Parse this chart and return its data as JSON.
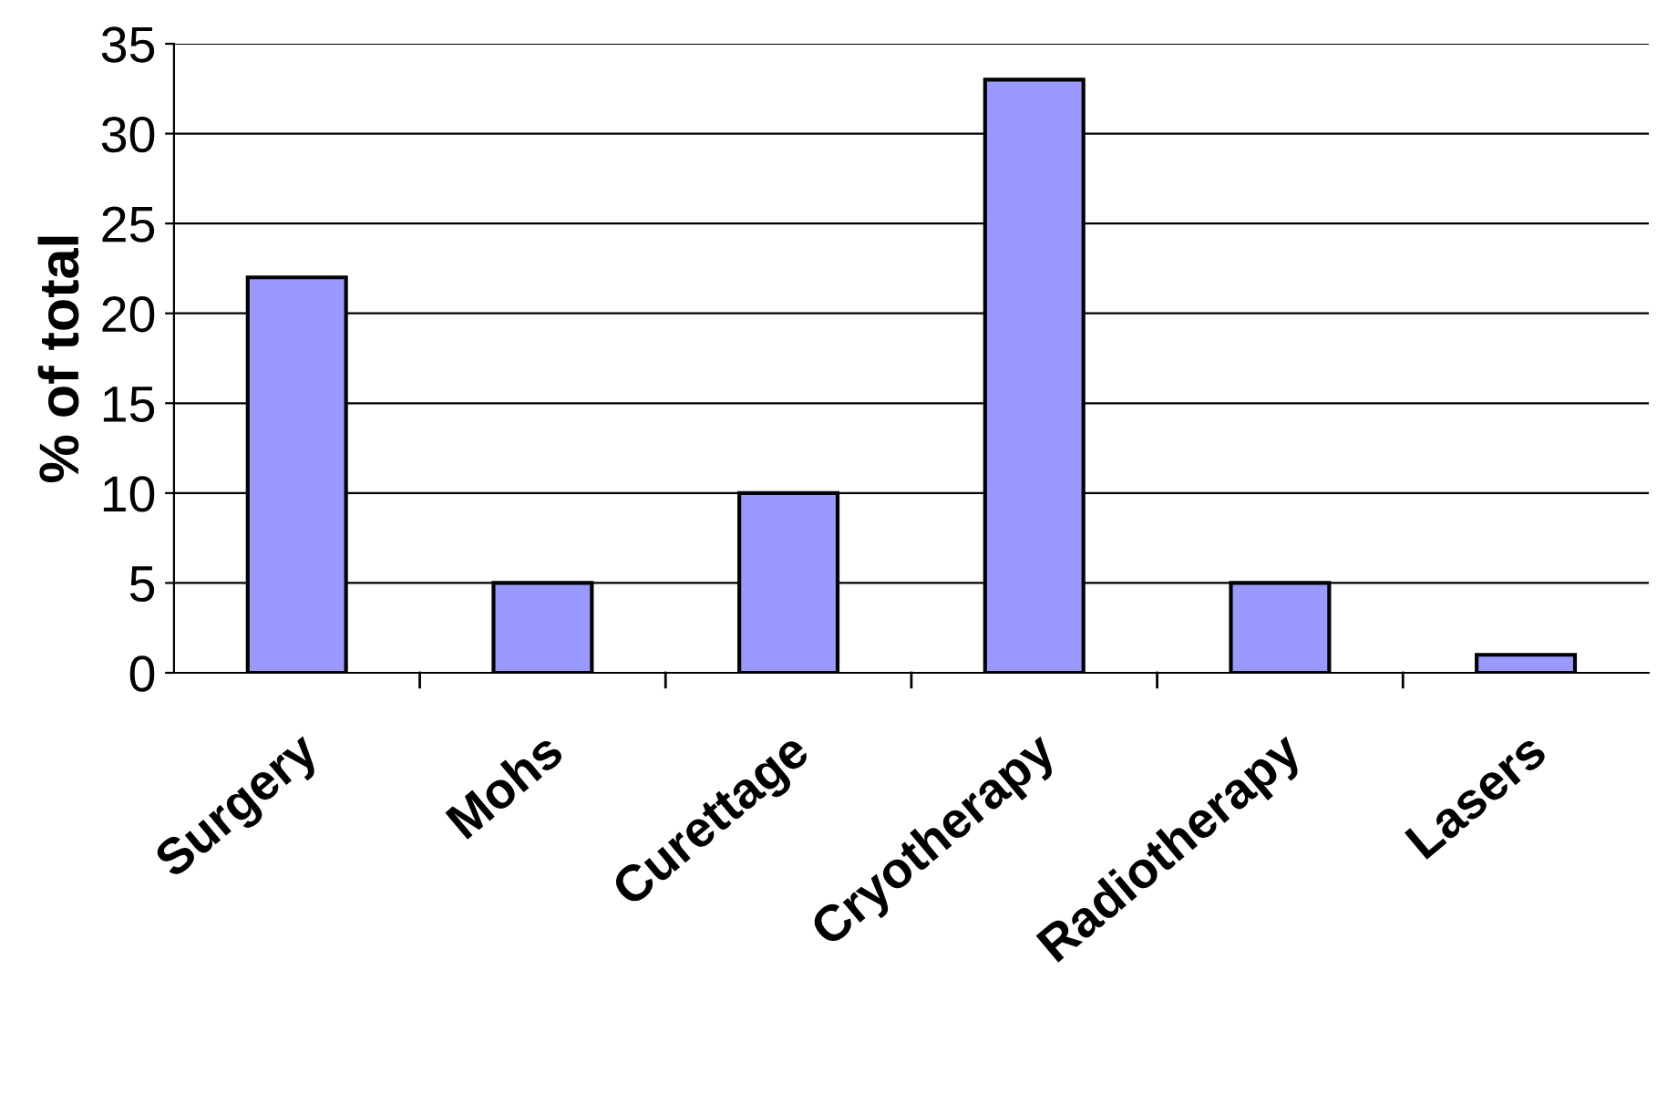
{
  "chart_data": {
    "type": "bar",
    "ylabel": "% of total",
    "categories": [
      "Surgery",
      "Mohs",
      "Curettage",
      "Cryotherapy",
      "Radiotherapy",
      "Lasers"
    ],
    "values": [
      22,
      5,
      10,
      33,
      5,
      1
    ],
    "color": "#9999ff",
    "ylim": [
      0,
      35
    ],
    "yticks": [
      0,
      5,
      10,
      15,
      20,
      25,
      30,
      35
    ],
    "grid": "y"
  }
}
